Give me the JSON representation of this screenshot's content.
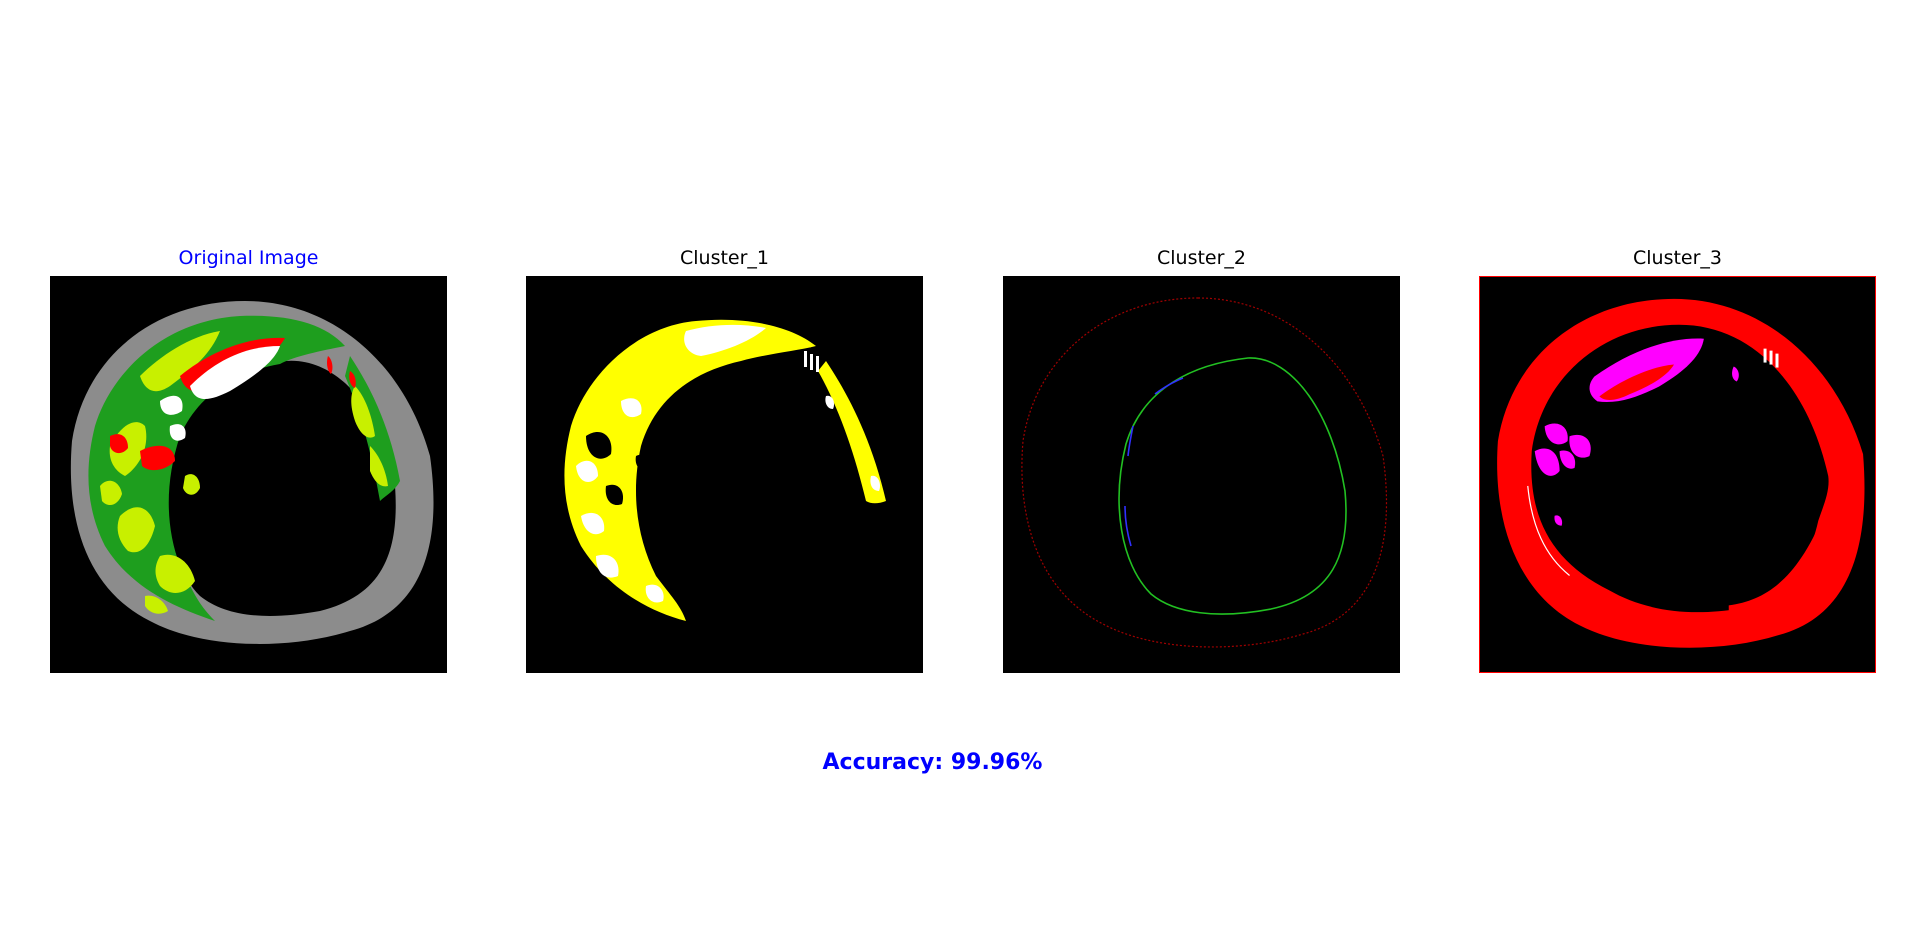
{
  "panels": [
    {
      "title": "Original Image",
      "image": "ring-segmentation-colored"
    },
    {
      "title": "Cluster_1",
      "image": "cluster-yellow-white-crescent"
    },
    {
      "title": "Cluster_2",
      "image": "cluster-thin-contours"
    },
    {
      "title": "Cluster_3",
      "image": "cluster-red-ring-magenta"
    }
  ],
  "accuracy_label": "Accuracy: 99.96%",
  "colors": {
    "title_highlight": "#0000ff",
    "accuracy": "#0000ff",
    "background": "#000000",
    "ring_gray": "#888888",
    "green": "#1e9e1e",
    "yellow_green": "#c8f000",
    "red": "#ff0000",
    "yellow": "#ffff00",
    "magenta": "#ff00ff"
  }
}
